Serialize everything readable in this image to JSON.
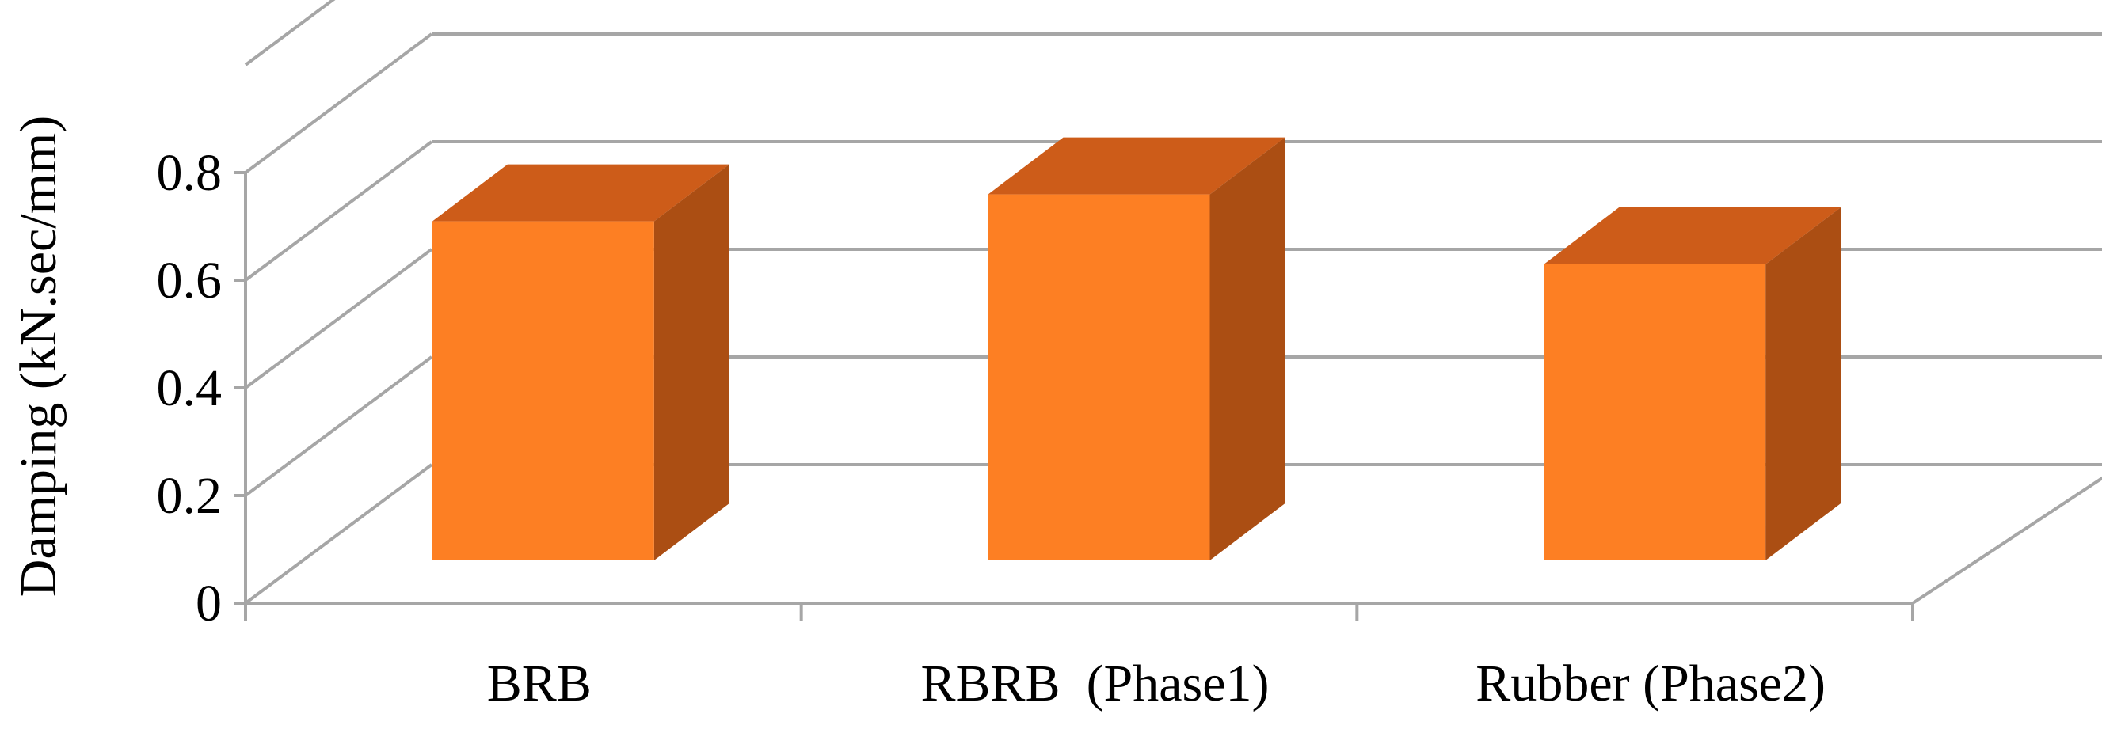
{
  "chart_data": {
    "type": "bar",
    "style": "3d-column",
    "categories": [
      "BRB",
      "RBRB  (Phase1)",
      "Rubber (Phase2)"
    ],
    "values": [
      0.63,
      0.68,
      0.55
    ],
    "ylabel": "Damping (kN.sec/mm)",
    "xlabel": "",
    "ylim": [
      0,
      0.8
    ],
    "yticks": [
      "0",
      "0.2",
      "0.4",
      "0.6",
      "0.8"
    ],
    "grid": true,
    "legend": "none",
    "colors": {
      "front": "#fd7f23",
      "top": "#cd5c19",
      "side": "#ab4e13",
      "grid": "#a6a6a6"
    }
  }
}
